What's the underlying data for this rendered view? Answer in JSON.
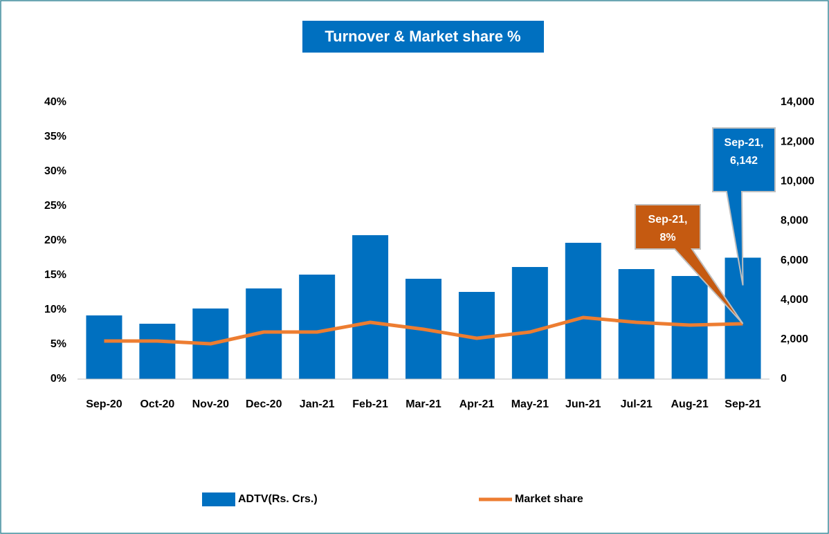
{
  "chart_data": {
    "type": "bar+line",
    "title": "Turnover & Market share %",
    "categories": [
      "Sep-20",
      "Oct-20",
      "Nov-20",
      "Dec-20",
      "Jan-21",
      "Feb-21",
      "Mar-21",
      "Apr-21",
      "May-21",
      "Jun-21",
      "Jul-21",
      "Aug-21",
      "Sep-21"
    ],
    "series": [
      {
        "name": "ADTV(Rs. Crs.)",
        "type": "bar",
        "axis": "y2",
        "color": "#0070c0",
        "values": [
          3220,
          2800,
          3570,
          4585,
          5285,
          7280,
          5075,
          4410,
          5670,
          6895,
          5565,
          5215,
          6142
        ]
      },
      {
        "name": "Market share",
        "type": "line",
        "axis": "y",
        "color": "#ed7d31",
        "values": [
          5.5,
          5.5,
          5.1,
          6.8,
          6.8,
          8.2,
          7.2,
          5.9,
          6.8,
          8.9,
          8.2,
          7.8,
          8
        ]
      }
    ],
    "annotations": [
      {
        "lines": [
          "Sep-21,",
          "6,142"
        ],
        "color": "#0070c0"
      },
      {
        "lines": [
          "Sep-21,",
          "8%"
        ],
        "color": "#c55a11"
      }
    ],
    "ylim": [
      0,
      40
    ],
    "yticks": [
      {
        "value": 0,
        "label": "0%"
      },
      {
        "value": 5,
        "label": "5%"
      },
      {
        "value": 10,
        "label": "10%"
      },
      {
        "value": 15,
        "label": "15%"
      },
      {
        "value": 20,
        "label": "20%"
      },
      {
        "value": 25,
        "label": "25%"
      },
      {
        "value": 30,
        "label": "30%"
      },
      {
        "value": 35,
        "label": "35%"
      },
      {
        "value": 40,
        "label": "40%"
      }
    ],
    "y2lim": [
      0,
      14000
    ],
    "y2ticks": [
      0,
      {
        "value": 2000,
        "label": "2,000"
      },
      {
        "value": 4000,
        "label": "4,000"
      },
      {
        "value": 6000,
        "label": "6,000"
      },
      {
        "value": 8000,
        "label": "8,000"
      },
      {
        "value": 10000,
        "label": "10,000"
      },
      {
        "value": 12000,
        "label": "12,000"
      },
      {
        "value": 14000,
        "label": "14,000"
      }
    ],
    "legend": "bottom",
    "grid": false
  }
}
